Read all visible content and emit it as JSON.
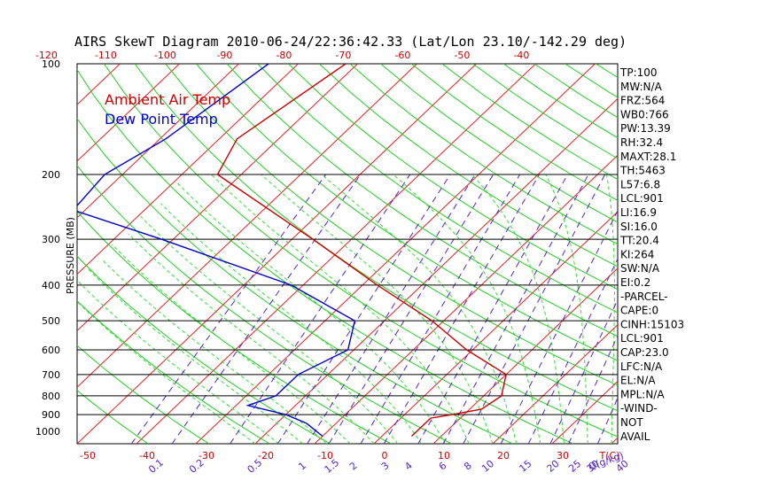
{
  "title": "AIRS SkewT Diagram 2010-06-24/22:36:42.33 (Lat/Lon 23.10/-142.29 deg)",
  "chart_data": {
    "type": "line",
    "title": "AIRS SkewT Diagram 2010-06-24/22:36:42.33 (Lat/Lon 23.10/-142.29 deg)",
    "ylabel": "PRESSURE (MB)",
    "pressure_ticks": [
      100,
      200,
      300,
      400,
      500,
      600,
      700,
      800,
      900,
      1000
    ],
    "pressure_lines": [
      200,
      300,
      400,
      500,
      600,
      700,
      800,
      900
    ],
    "top_temp_ticks": [
      "-120",
      "-110",
      "-100",
      "-90",
      "-80",
      "-70",
      "-60",
      "-50",
      "-40"
    ],
    "bottom_temp_ticks": [
      "-50",
      "-40",
      "-30",
      "-20",
      "-10",
      "0",
      "10",
      "20",
      "30"
    ],
    "bottom_temp_unit": "T(C)",
    "mixing_ratio_labels": [
      "0.1",
      "0.2",
      "0.5",
      "1",
      "1.5",
      "2",
      "3",
      "4",
      "6",
      "8",
      "10",
      "15",
      "20",
      "25",
      "30",
      "40"
    ],
    "mixing_ratio_unit": "Q(g/kg)",
    "series": [
      {
        "name": "Ambient Air Temp",
        "color": "#cc0000",
        "points": [
          [
            100,
            -72
          ],
          [
            160,
            -77
          ],
          [
            200,
            -74
          ],
          [
            300,
            -46.5
          ],
          [
            400,
            -27.5
          ],
          [
            500,
            -12
          ],
          [
            600,
            -1
          ],
          [
            700,
            10
          ],
          [
            800,
            13
          ],
          [
            870,
            12
          ],
          [
            900,
            8
          ],
          [
            920,
            5
          ],
          [
            1000,
            5
          ],
          [
            1030,
            5
          ]
        ]
      },
      {
        "name": "Dew Point Temp",
        "color": "#0000cc",
        "points": [
          [
            100,
            -85
          ],
          [
            160,
            -89
          ],
          [
            200,
            -93
          ],
          [
            250,
            -92
          ],
          [
            300,
            -72
          ],
          [
            400,
            -42
          ],
          [
            500,
            -25
          ],
          [
            600,
            -21
          ],
          [
            700,
            -25
          ],
          [
            800,
            -25
          ],
          [
            850,
            -28
          ],
          [
            900,
            -20
          ],
          [
            950,
            -15
          ],
          [
            1030,
            -10
          ]
        ]
      }
    ],
    "legend": [
      "Ambient Air Temp",
      "Dew Point Temp"
    ]
  },
  "indices": [
    "TP:100",
    "MW:N/A",
    "FRZ:564",
    "WB0:766",
    "PW:13.39",
    "RH:32.4",
    "MAXT:28.1",
    "TH:5463",
    "L57:6.8",
    "LCL:901",
    "LI:16.9",
    "SI:16.0",
    "TT:20.4",
    "KI:264",
    "SW:N/A",
    "EI:0.2",
    "-PARCEL-",
    "CAPE:0",
    "CINH:15103",
    "LCL:901",
    "CAP:23.0",
    "LFC:N/A",
    "EL:N/A",
    "MPL:N/A",
    "-WIND-",
    "NOT",
    "AVAIL"
  ],
  "colors": {
    "temp": "#cc0000",
    "dew": "#0000cc",
    "isotherm": "#e02020",
    "dry_adiabat": "#22cc22",
    "moist_adiabat": "#33dd33",
    "mixing_ratio": "#5522cc",
    "temp_ticks": "#cc0000",
    "mixing_ticks": "#5522cc"
  }
}
